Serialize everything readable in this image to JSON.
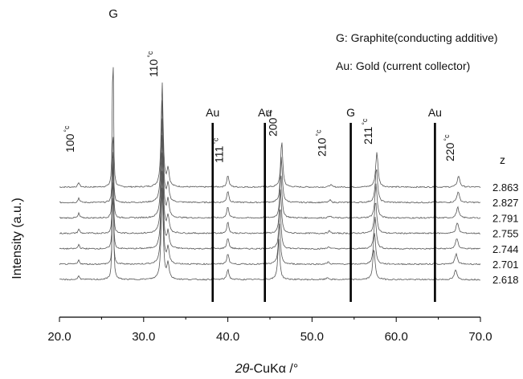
{
  "chart_data": {
    "type": "line",
    "title": "",
    "xlabel_prefix": "2θ",
    "xlabel_rest": "-CuKα /°",
    "ylabel": "Intensity (a.u.)",
    "xlim": [
      20.0,
      70.0
    ],
    "x_ticks": [
      "20.0",
      "30.0",
      "40.0",
      "50.0",
      "60.0",
      "70.0"
    ],
    "x_tick_values": [
      20,
      30,
      40,
      50,
      60,
      70
    ],
    "legend": [
      "G: Graphite(conducting additive)",
      "Au: Gold (current collector)"
    ],
    "z_header": "z",
    "series": [
      {
        "name": "2.863",
        "scale": 1.0,
        "shift": 0.0
      },
      {
        "name": "2.827",
        "scale": 0.98,
        "shift": 0.05
      },
      {
        "name": "2.791",
        "scale": 0.96,
        "shift": 0.1
      },
      {
        "name": "2.755",
        "scale": 0.94,
        "shift": 0.15
      },
      {
        "name": "2.744",
        "scale": 0.92,
        "shift": 0.2
      },
      {
        "name": "2.701",
        "scale": 0.9,
        "shift": 0.28
      },
      {
        "name": "2.618",
        "scale": 0.88,
        "shift": 0.35
      }
    ],
    "reflections": [
      {
        "label": "100",
        "sup": "°c",
        "x": 22.3
      },
      {
        "label": "110",
        "sup": "°c",
        "x": 32.2
      },
      {
        "label": "111",
        "sup": "°c",
        "x": 40.0
      },
      {
        "label": "200",
        "sup": "°c",
        "x": 46.4
      },
      {
        "label": "210",
        "sup": "°c",
        "x": 52.2
      },
      {
        "label": "211",
        "sup": "°c",
        "x": 57.7
      },
      {
        "label": "220",
        "sup": "°c",
        "x": 67.4
      }
    ],
    "reference_lines": [
      {
        "label": "Au",
        "x": 38.2
      },
      {
        "label": "Au",
        "x": 44.4
      },
      {
        "label": "G",
        "x": 54.6
      },
      {
        "label": "Au",
        "x": 64.6
      }
    ],
    "graphite_peak": {
      "label": "G",
      "x": 26.4
    }
  }
}
